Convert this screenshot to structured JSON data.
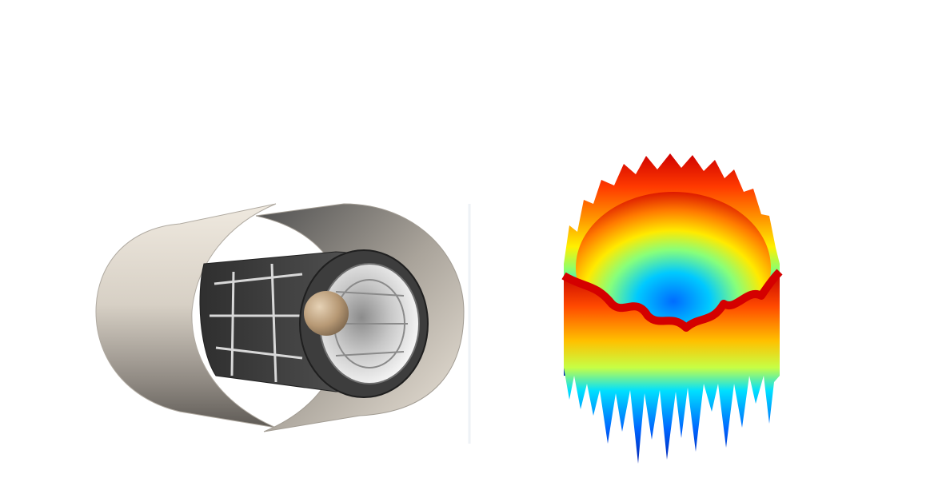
{
  "figure": {
    "panels": [
      {
        "id": "left",
        "subject": "cylindrical-device",
        "colors": {
          "outer_shell_light": "#ece6dc",
          "outer_shell_mid": "#b9b2a8",
          "outer_shell_dark": "#5e5a55",
          "inner_shell_dark": "#3a3a3a",
          "cage_dark": "#4a4a4a",
          "cage_light": "#cfcfcf",
          "bore_light": "#f2f2f2",
          "bore_mid": "#a8a8a8",
          "sphere": "#b69874"
        }
      },
      {
        "id": "right",
        "subject": "3d-surface-plot",
        "colormap": "jet",
        "colors": {
          "top": "#d40000",
          "upper": "#ff6a00",
          "middle": "#ffee00",
          "lower_mid": "#52ff9d",
          "lower": "#00c8ff",
          "bottom": "#0033cc"
        }
      }
    ]
  }
}
